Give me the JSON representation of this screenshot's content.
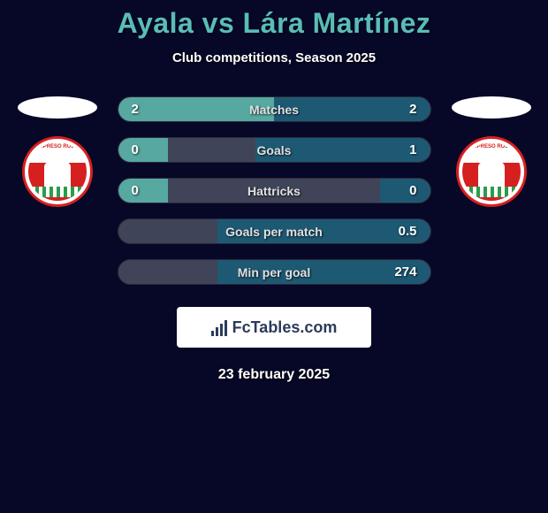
{
  "header": {
    "title": "Ayala vs Lára Martínez",
    "subtitle": "Club competitions, Season 2025"
  },
  "colors": {
    "background": "#070727",
    "title_color": "#5abdb5",
    "left_fill": "#57a8a0",
    "right_fill": "#1e5973",
    "bar_background": "#404458"
  },
  "stats": [
    {
      "label": "Matches",
      "left_value": "2",
      "right_value": "2",
      "left_pct": 50,
      "right_pct": 50
    },
    {
      "label": "Goals",
      "left_value": "0",
      "right_value": "1",
      "left_pct": 16,
      "right_pct": 56
    },
    {
      "label": "Hattricks",
      "left_value": "0",
      "right_value": "0",
      "left_pct": 16,
      "right_pct": 16
    },
    {
      "label": "Goals per match",
      "left_value": "",
      "right_value": "0.5",
      "left_pct": 0,
      "right_pct": 68
    },
    {
      "label": "Min per goal",
      "left_value": "",
      "right_value": "274",
      "left_pct": 0,
      "right_pct": 68
    }
  ],
  "badge": {
    "top_text": "EXPRESO ROJO",
    "bottom_text": "FUSAGASUGA"
  },
  "watermark": {
    "text": "FcTables.com"
  },
  "footer": {
    "date": "23 february 2025"
  }
}
